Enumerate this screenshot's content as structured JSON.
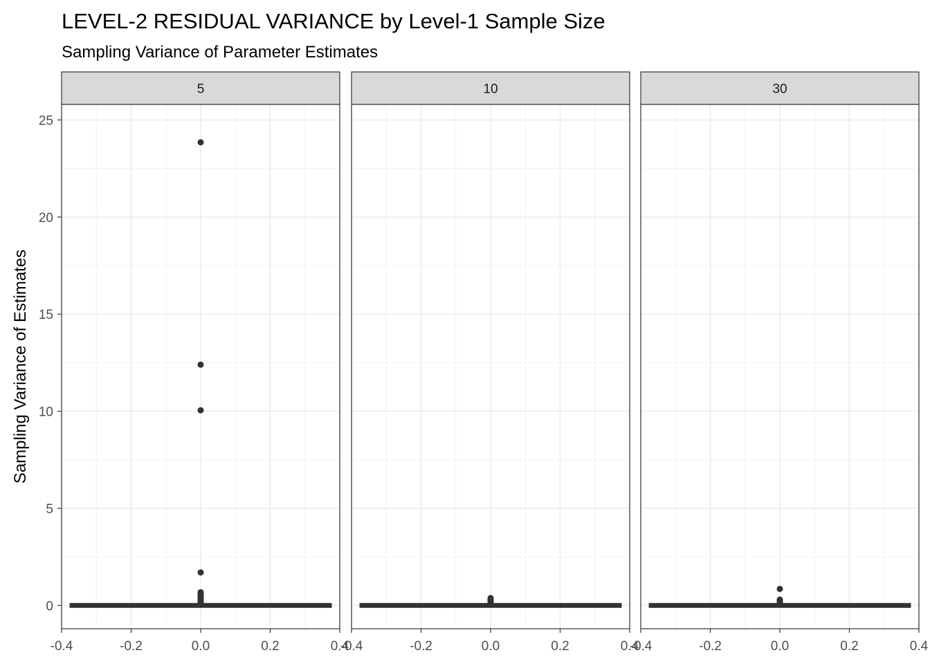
{
  "chart_data": {
    "type": "boxplot",
    "title": "LEVEL-2 RESIDUAL VARIANCE by Level-1 Sample Size",
    "subtitle": "Sampling Variance of Parameter Estimates",
    "xlabel": "",
    "ylabel": "Sampling Variance of Estimates",
    "facet_labels": [
      "5",
      "10",
      "30"
    ],
    "x_ticks": [
      "-0.4",
      "-0.2",
      "0.0",
      "0.2",
      "0.4"
    ],
    "x_tick_values": [
      -0.4,
      -0.2,
      0.0,
      0.2,
      0.4
    ],
    "y_ticks": [
      "0",
      "5",
      "10",
      "15",
      "20",
      "25"
    ],
    "y_tick_values": [
      0,
      5,
      10,
      15,
      20,
      25
    ],
    "xlim": [
      -0.4,
      0.4
    ],
    "ylim": [
      -1.2,
      25.8
    ],
    "grid": true,
    "colors": {
      "box": "#333333",
      "outlier": "#333333",
      "grid_major": "#ebebeb",
      "grid_minor": "#f2f2f2",
      "strip_fill": "#d9d9d9",
      "panel_border": "#333333"
    },
    "panels": [
      {
        "label": "5",
        "box": {
          "q1": 0,
          "median": 0,
          "q3": 0,
          "whisker_low": 0,
          "whisker_high": 0,
          "xmin": -0.375,
          "xmax": 0.375
        },
        "outliers": [
          23.85,
          12.4,
          10.05,
          1.7,
          0.68,
          0.62,
          0.58,
          0.52,
          0.47,
          0.42,
          0.37,
          0.32,
          0.27,
          0.22,
          0.17,
          0.12
        ]
      },
      {
        "label": "10",
        "box": {
          "q1": 0,
          "median": 0,
          "q3": 0,
          "whisker_low": 0,
          "whisker_high": 0,
          "xmin": -0.375,
          "xmax": 0.375
        },
        "outliers": [
          0.38,
          0.33,
          0.28,
          0.23,
          0.18,
          0.13
        ]
      },
      {
        "label": "30",
        "box": {
          "q1": 0,
          "median": 0,
          "q3": 0,
          "whisker_low": 0,
          "whisker_high": 0,
          "xmin": -0.375,
          "xmax": 0.375
        },
        "outliers": [
          0.85,
          0.3,
          0.24,
          0.18,
          0.12
        ]
      }
    ]
  }
}
